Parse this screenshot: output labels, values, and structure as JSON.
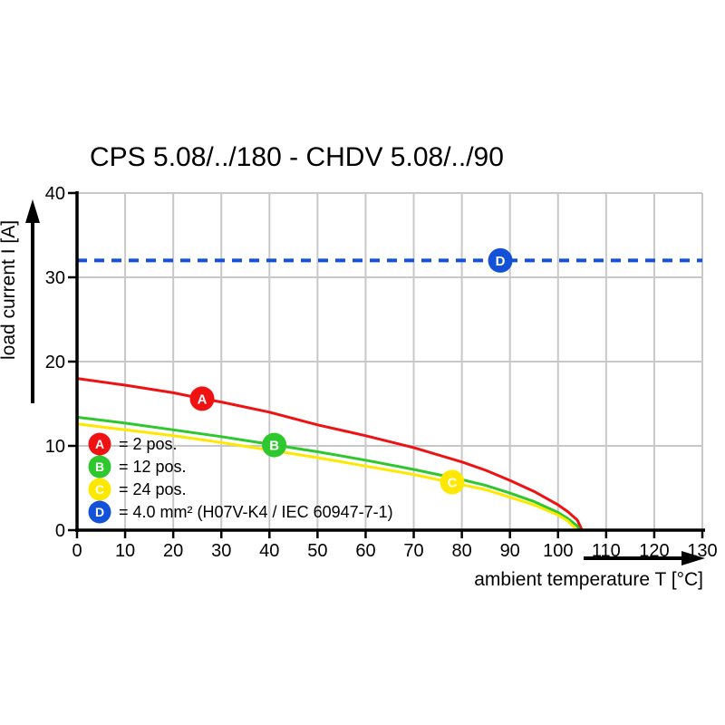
{
  "title": "CPS 5.08/../180 - CHDV 5.08/../90",
  "legend": {
    "items": [
      {
        "id": "A",
        "label": "= 2 pos.",
        "color": "#ee1212"
      },
      {
        "id": "B",
        "label": "= 12 pos.",
        "color": "#2ec82e"
      },
      {
        "id": "C",
        "label": "= 24 pos.",
        "color": "#ffe800"
      },
      {
        "id": "D",
        "label": "= 4.0 mm² (H07V-K4 / IEC 60947-7-1)",
        "color": "#1351d8"
      }
    ]
  },
  "chart_data": {
    "type": "line",
    "title": "CPS 5.08/../180 - CHDV 5.08/../90",
    "xlabel": "ambient temperature T [°C]",
    "ylabel": "load current I [A]",
    "xlim": [
      0,
      130
    ],
    "ylim": [
      0,
      40
    ],
    "x_ticks": [
      0,
      10,
      20,
      30,
      40,
      50,
      60,
      70,
      80,
      90,
      100,
      110,
      120,
      130
    ],
    "y_ticks": [
      0,
      10,
      20,
      30,
      40
    ],
    "grid": true,
    "grid_color": "#c8c8c8",
    "legend_position": "inside-bottom-left",
    "series": [
      {
        "name": "A = 2 pos.",
        "color": "#ee1212",
        "style": "solid",
        "marker": {
          "letter": "A",
          "x": 26,
          "y": 15.6
        },
        "points": [
          [
            0,
            18.0
          ],
          [
            10,
            17.2
          ],
          [
            20,
            16.3
          ],
          [
            26,
            15.6
          ],
          [
            30,
            15.2
          ],
          [
            40,
            14.0
          ],
          [
            50,
            12.5
          ],
          [
            60,
            11.2
          ],
          [
            70,
            9.8
          ],
          [
            80,
            8.1
          ],
          [
            85,
            7.1
          ],
          [
            90,
            5.9
          ],
          [
            95,
            4.6
          ],
          [
            100,
            3.0
          ],
          [
            102,
            2.2
          ],
          [
            104,
            1.2
          ],
          [
            105,
            0
          ]
        ]
      },
      {
        "name": "B = 12 pos.",
        "color": "#2ec82e",
        "style": "solid",
        "marker": {
          "letter": "B",
          "x": 41,
          "y": 10.1
        },
        "points": [
          [
            0,
            13.4
          ],
          [
            10,
            12.7
          ],
          [
            20,
            11.9
          ],
          [
            30,
            11.1
          ],
          [
            40,
            10.2
          ],
          [
            50,
            9.3
          ],
          [
            60,
            8.3
          ],
          [
            70,
            7.2
          ],
          [
            80,
            6.0
          ],
          [
            85,
            5.3
          ],
          [
            90,
            4.4
          ],
          [
            95,
            3.4
          ],
          [
            100,
            2.1
          ],
          [
            102,
            1.4
          ],
          [
            104,
            0.5
          ],
          [
            104.5,
            0
          ]
        ]
      },
      {
        "name": "C = 24 pos.",
        "color": "#ffe800",
        "style": "solid",
        "marker": {
          "letter": "C",
          "x": 78,
          "y": 5.7
        },
        "points": [
          [
            0,
            12.6
          ],
          [
            10,
            11.9
          ],
          [
            20,
            11.2
          ],
          [
            30,
            10.4
          ],
          [
            40,
            9.5
          ],
          [
            50,
            8.6
          ],
          [
            60,
            7.6
          ],
          [
            70,
            6.6
          ],
          [
            80,
            5.4
          ],
          [
            85,
            4.8
          ],
          [
            90,
            3.9
          ],
          [
            95,
            3.0
          ],
          [
            100,
            1.8
          ],
          [
            102,
            1.1
          ],
          [
            104,
            0
          ]
        ]
      },
      {
        "name": "D = 4.0 mm² (H07V-K4 / IEC 60947-7-1)",
        "color": "#1351d8",
        "style": "dashed",
        "marker": {
          "letter": "D",
          "x": 88,
          "y": 32
        },
        "points": [
          [
            0,
            32
          ],
          [
            130,
            32
          ]
        ]
      }
    ]
  }
}
